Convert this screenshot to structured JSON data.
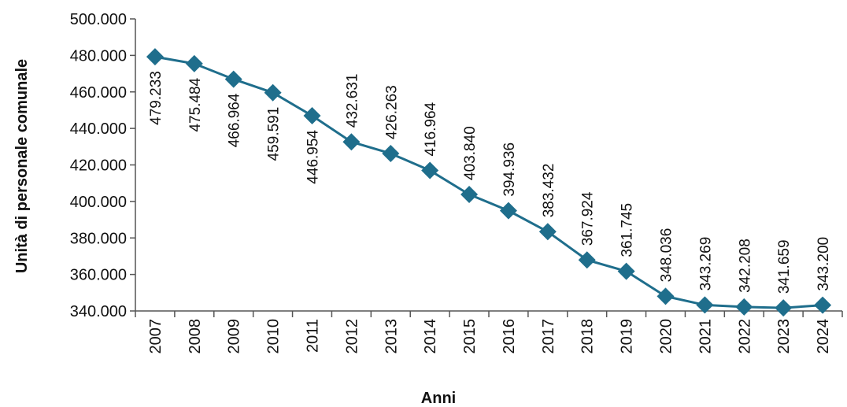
{
  "chart_data": {
    "type": "line",
    "title": "",
    "xlabel": "Anni",
    "ylabel": "Unità di personale comunale",
    "x": [
      "2007",
      "2008",
      "2009",
      "2010",
      "2011",
      "2012",
      "2013",
      "2014",
      "2015",
      "2016",
      "2017",
      "2018",
      "2019",
      "2020",
      "2021",
      "2022",
      "2023",
      "2024"
    ],
    "series": [
      {
        "values": [
          479233,
          475484,
          466964,
          459591,
          446954,
          432631,
          426263,
          416964,
          403840,
          394936,
          383432,
          367924,
          361745,
          348036,
          343269,
          342208,
          341659,
          343200
        ],
        "labels": [
          "479.233",
          "475.484",
          "466.964",
          "459.591",
          "446.954",
          "432.631",
          "426.263",
          "416.964",
          "403.840",
          "394.936",
          "383.432",
          "367.924",
          "361.745",
          "348.036",
          "343.269",
          "342.208",
          "341.659",
          "343.200"
        ],
        "color": "#1f6e8c"
      }
    ],
    "ylim": [
      340000,
      500000
    ],
    "yticks": [
      340000,
      360000,
      380000,
      400000,
      420000,
      440000,
      460000,
      480000,
      500000
    ],
    "ytick_labels": [
      "340.000",
      "360.000",
      "380.000",
      "400.000",
      "420.000",
      "440.000",
      "460.000",
      "480.000",
      "500.000"
    ],
    "grid": false,
    "legend": "none",
    "marker": "diamond"
  }
}
